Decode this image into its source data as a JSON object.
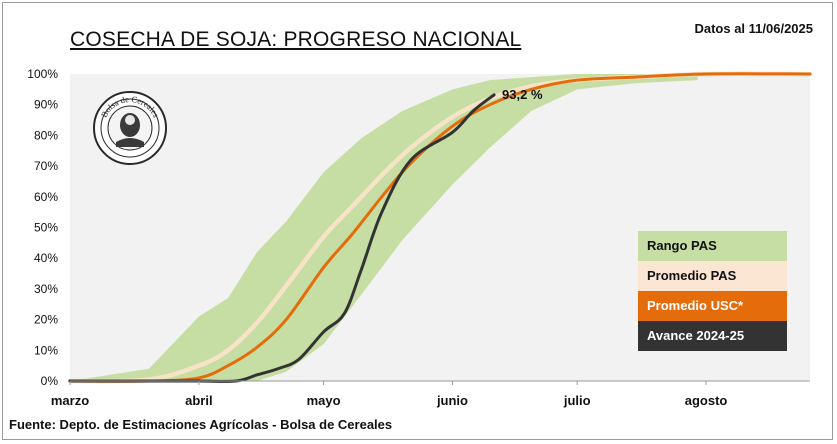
{
  "header": {
    "title": "COSECHA DE SOJA: PROGRESO NACIONAL",
    "date_label": "Datos al 11/06/2025"
  },
  "footer": {
    "source": "Fuente: Depto. de Estimaciones Agrícolas - Bolsa de Cereales"
  },
  "logo": {
    "text": "Bolsa de Cereales"
  },
  "colors": {
    "range": "#c6dea4",
    "avg_pas": "#fbe6d4",
    "avg_pas_line": "#f8e3c6",
    "avg_usc": "#e46c0a",
    "advance": "#333333",
    "plot_bg": "#f2f2f2"
  },
  "chart_data": {
    "type": "area",
    "title": "COSECHA DE SOJA: PROGRESO NACIONAL",
    "xlabel": "",
    "ylabel": "",
    "x_ticks": [
      "marzo",
      "abril",
      "mayo",
      "junio",
      "julio",
      "agosto"
    ],
    "y_ticks": [
      "0%",
      "10%",
      "20%",
      "30%",
      "40%",
      "50%",
      "60%",
      "70%",
      "80%",
      "90%",
      "100%"
    ],
    "xlim": [
      "01-mar",
      "26-ago"
    ],
    "ylim": [
      0,
      100
    ],
    "grid": false,
    "legend_position": "right",
    "series": [
      {
        "name": "Rango PAS",
        "kind": "band",
        "x": [
          "01-mar",
          "20-mar",
          "01-abr",
          "08-abr",
          "15-abr",
          "22-abr",
          "01-may",
          "10-may",
          "20-may",
          "01-jun",
          "10-jun",
          "20-jun",
          "01-jul",
          "15-jul",
          "30-jul"
        ],
        "low": [
          0,
          0,
          0,
          0,
          0,
          3,
          12,
          28,
          46,
          64,
          76,
          88,
          95,
          97,
          98
        ],
        "high": [
          0,
          4,
          21,
          27,
          42,
          52,
          68,
          79,
          88,
          95,
          98,
          99,
          100,
          100,
          100
        ]
      },
      {
        "name": "Promedio PAS",
        "kind": "line",
        "x": [
          "01-mar",
          "20-mar",
          "01-abr",
          "08-abr",
          "15-abr",
          "22-abr",
          "01-may",
          "08-may",
          "15-may",
          "22-may",
          "01-jun",
          "10-jun",
          "20-jun",
          "01-jul",
          "15-jul",
          "01-ago",
          "26-ago"
        ],
        "y": [
          0,
          0.5,
          5,
          10,
          19,
          31,
          47,
          57,
          67,
          76,
          86,
          92,
          96,
          98,
          99,
          100,
          100
        ]
      },
      {
        "name": "Promedio  USC*",
        "kind": "line",
        "x": [
          "01-mar",
          "20-mar",
          "01-abr",
          "08-abr",
          "15-abr",
          "22-abr",
          "01-may",
          "08-may",
          "15-may",
          "22-may",
          "01-jun",
          "10-jun",
          "20-jun",
          "01-jul",
          "15-jul",
          "01-ago",
          "26-ago"
        ],
        "y": [
          0,
          0,
          1,
          5,
          11,
          20,
          37,
          48,
          60,
          71,
          83,
          90,
          95,
          98,
          99,
          100,
          100
        ]
      },
      {
        "name": "Avance 2024-25",
        "kind": "line",
        "x": [
          "01-mar",
          "20-mar",
          "01-abr",
          "10-abr",
          "15-abr",
          "20-abr",
          "25-abr",
          "01-may",
          "06-may",
          "10-may",
          "15-may",
          "22-may",
          "01-jun",
          "06-jun",
          "11-jun"
        ],
        "y": [
          0,
          0,
          0,
          0,
          2,
          4,
          7,
          16,
          22,
          36,
          55,
          72,
          81,
          88,
          93.2
        ]
      }
    ],
    "annotations": [
      {
        "text": "93,2 %",
        "x": "11-jun",
        "y": 93.2
      }
    ]
  }
}
